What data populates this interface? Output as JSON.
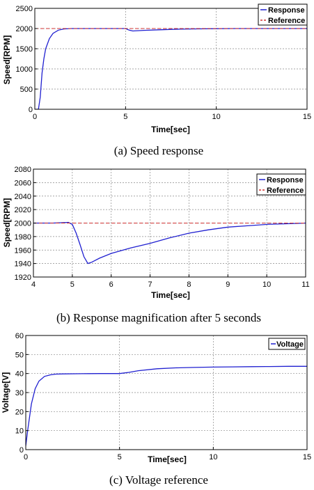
{
  "colors": {
    "response": "#1f1fd0",
    "reference": "#d03030",
    "grid": "#888888",
    "axis": "#000000"
  },
  "chart_data": [
    {
      "type": "line",
      "caption": "(a)  Speed  response",
      "xlabel": "Time[sec]",
      "ylabel": "Speed[RPM]",
      "xlim": [
        0,
        15
      ],
      "ylim": [
        0,
        2500
      ],
      "xticks": [
        0,
        5,
        10,
        15
      ],
      "yticks": [
        0,
        500,
        1000,
        1500,
        2000,
        2500
      ],
      "grid": true,
      "legend": "top-right",
      "series": [
        {
          "name": "Response",
          "style": "solid",
          "x": [
            0,
            0.2,
            0.3,
            0.4,
            0.5,
            0.6,
            0.8,
            1.0,
            1.3,
            1.6,
            2.0,
            2.5,
            3.0,
            4.0,
            5.0,
            5.2,
            5.4,
            6.0,
            7.0,
            8.0,
            9.0,
            10.0,
            11.0,
            12.0,
            13.0,
            14.0,
            15.0
          ],
          "y": [
            0,
            0,
            300,
            900,
            1250,
            1500,
            1750,
            1880,
            1960,
            1990,
            2000,
            2000,
            2000,
            2000,
            2000,
            1960,
            1940,
            1955,
            1970,
            1985,
            1992,
            1996,
            2000,
            2000,
            2000,
            2000,
            2000
          ]
        },
        {
          "name": "Reference",
          "style": "dashed",
          "x": [
            0,
            15
          ],
          "y": [
            2000,
            2000
          ]
        }
      ]
    },
    {
      "type": "line",
      "caption": "(b)  Response  magnification  after  5  seconds",
      "xlabel": "Time[sec]",
      "ylabel": "Speed[RPM]",
      "xlim": [
        4,
        11
      ],
      "ylim": [
        1920,
        2080
      ],
      "xticks": [
        4,
        5,
        6,
        7,
        8,
        9,
        10,
        11
      ],
      "yticks": [
        1920,
        1940,
        1960,
        1980,
        2000,
        2020,
        2040,
        2060,
        2080
      ],
      "grid": true,
      "legend": "top-right",
      "series": [
        {
          "name": "Response",
          "style": "solid",
          "x": [
            4,
            4.5,
            4.9,
            5.0,
            5.1,
            5.2,
            5.3,
            5.4,
            5.5,
            5.7,
            6.0,
            6.5,
            7.0,
            7.5,
            8.0,
            8.5,
            9.0,
            9.5,
            10.0,
            10.5,
            11.0
          ],
          "y": [
            2000,
            2000,
            2001,
            1998,
            1985,
            1968,
            1950,
            1940,
            1942,
            1948,
            1955,
            1963,
            1970,
            1978,
            1985,
            1990,
            1994,
            1996,
            1998,
            1999,
            2000
          ]
        },
        {
          "name": "Reference",
          "style": "dashed",
          "x": [
            4,
            11
          ],
          "y": [
            2000,
            2000
          ]
        }
      ]
    },
    {
      "type": "line",
      "caption": "(c)  Voltage  reference",
      "xlabel": "Time[sec]",
      "ylabel": "Voltage[V]",
      "xlim": [
        0,
        15
      ],
      "ylim": [
        0,
        60
      ],
      "xticks": [
        0,
        5,
        10,
        15
      ],
      "yticks": [
        0,
        10,
        20,
        30,
        40,
        50,
        60
      ],
      "grid": true,
      "legend": "top-right",
      "series": [
        {
          "name": "Voltage",
          "style": "solid",
          "x": [
            0,
            0.1,
            0.3,
            0.5,
            0.7,
            1.0,
            1.3,
            1.6,
            2.0,
            3.0,
            4.0,
            5.0,
            5.5,
            6.0,
            7.0,
            8.0,
            9.0,
            10.0,
            11.0,
            12.0,
            13.0,
            14.0,
            15.0
          ],
          "y": [
            2,
            10,
            24,
            32,
            36,
            38.5,
            39.3,
            39.7,
            39.8,
            39.9,
            40,
            40,
            40.6,
            41.5,
            42.5,
            43,
            43.2,
            43.4,
            43.5,
            43.6,
            43.7,
            43.8,
            43.8
          ]
        }
      ]
    }
  ]
}
